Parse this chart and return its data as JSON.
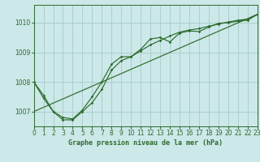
{
  "title": "Graphe pression niveau de la mer (hPa)",
  "bg_color": "#cce8e8",
  "line_color": "#2d6b2d",
  "grid_color": "#aacfcf",
  "x_min": 0,
  "x_max": 23,
  "y_min": 1006.5,
  "y_max": 1010.6,
  "y_ticks": [
    1007,
    1008,
    1009,
    1010
  ],
  "x_ticks": [
    0,
    1,
    2,
    3,
    4,
    5,
    6,
    7,
    8,
    9,
    10,
    11,
    12,
    13,
    14,
    15,
    16,
    17,
    18,
    19,
    20,
    21,
    22,
    23
  ],
  "series1_x": [
    0,
    1,
    2,
    3,
    4,
    5,
    6,
    7,
    8,
    9,
    10,
    11,
    12,
    13,
    14,
    15,
    16,
    17,
    18,
    19,
    20,
    21,
    22,
    23
  ],
  "series1_y": [
    1008.0,
    1007.55,
    1007.0,
    1006.8,
    1006.75,
    1007.05,
    1007.5,
    1008.0,
    1008.6,
    1008.85,
    1008.85,
    1009.1,
    1009.45,
    1009.5,
    1009.35,
    1009.65,
    1009.72,
    1009.7,
    1009.85,
    1009.98,
    1010.0,
    1010.05,
    1010.08,
    1010.28
  ],
  "series2_x": [
    0,
    1,
    2,
    3,
    4,
    5,
    6,
    7,
    8,
    9,
    10,
    11,
    12,
    13,
    14,
    15,
    16,
    17,
    18,
    19,
    20,
    21,
    22,
    23
  ],
  "series2_y": [
    1008.0,
    1007.45,
    1007.0,
    1006.72,
    1006.72,
    1007.0,
    1007.3,
    1007.75,
    1008.4,
    1008.72,
    1008.85,
    1009.05,
    1009.25,
    1009.4,
    1009.55,
    1009.68,
    1009.75,
    1009.8,
    1009.88,
    1009.95,
    1010.02,
    1010.08,
    1010.12,
    1010.28
  ],
  "series3_x": [
    0,
    23
  ],
  "series3_y": [
    1007.0,
    1010.28
  ],
  "title_fontsize": 6.0,
  "tick_fontsize": 5.5,
  "ylabel_fontsize": 6
}
